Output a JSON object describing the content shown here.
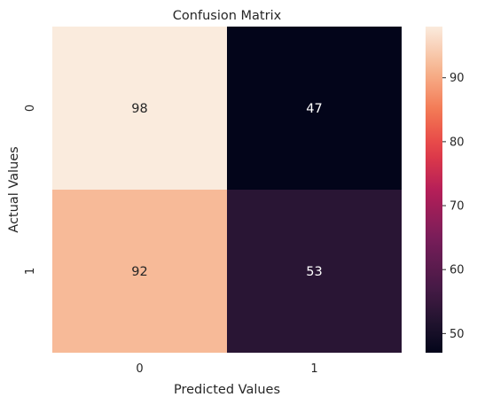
{
  "chart_data": {
    "type": "heatmap",
    "title": "Confusion Matrix",
    "xlabel": "Predicted Values",
    "ylabel": "Actual Values",
    "x_categories": [
      "0",
      "1"
    ],
    "y_categories": [
      "0",
      "1"
    ],
    "values": [
      [
        98,
        47
      ],
      [
        92,
        53
      ]
    ],
    "colorbar": {
      "range": [
        47,
        98
      ],
      "ticks": [
        "50",
        "60",
        "70",
        "80",
        "90"
      ],
      "colormap": "rocket"
    }
  }
}
